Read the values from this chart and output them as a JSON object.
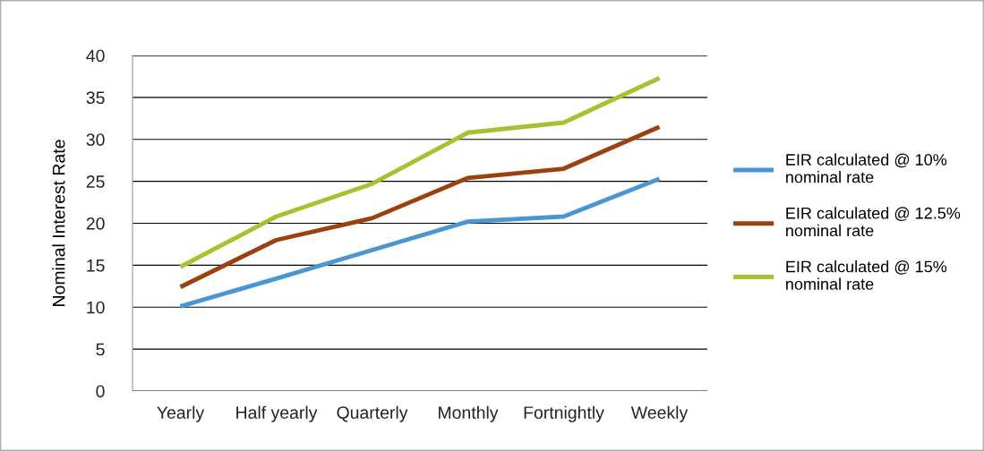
{
  "chart_data": {
    "type": "line",
    "ylabel": "Nominal Interest Rate",
    "categories": [
      "Yearly",
      "Half yearly",
      "Quarterly",
      "Monthly",
      "Fortnightly",
      "Weekly"
    ],
    "series": [
      {
        "name": "EIR calculated @ 10%\nnominal rate",
        "color": "#4a96d2",
        "values": [
          10.1,
          13.4,
          16.8,
          20.2,
          20.8,
          25.3
        ]
      },
      {
        "name": "EIR calculated @ 12.5%\nnominal rate",
        "color": "#9c4010",
        "values": [
          12.4,
          18.0,
          20.6,
          25.4,
          26.5,
          31.5
        ]
      },
      {
        "name": "EIR calculated @ 15%\nnominal rate",
        "color": "#a6c232",
        "values": [
          14.8,
          20.8,
          24.7,
          30.8,
          32.0,
          37.3
        ]
      }
    ],
    "ylim": [
      0,
      40
    ],
    "yticks": [
      0,
      5,
      10,
      15,
      20,
      25,
      30,
      35,
      40
    ],
    "grid": "y",
    "legend": "right",
    "marker": "none",
    "line_style": "solid"
  }
}
